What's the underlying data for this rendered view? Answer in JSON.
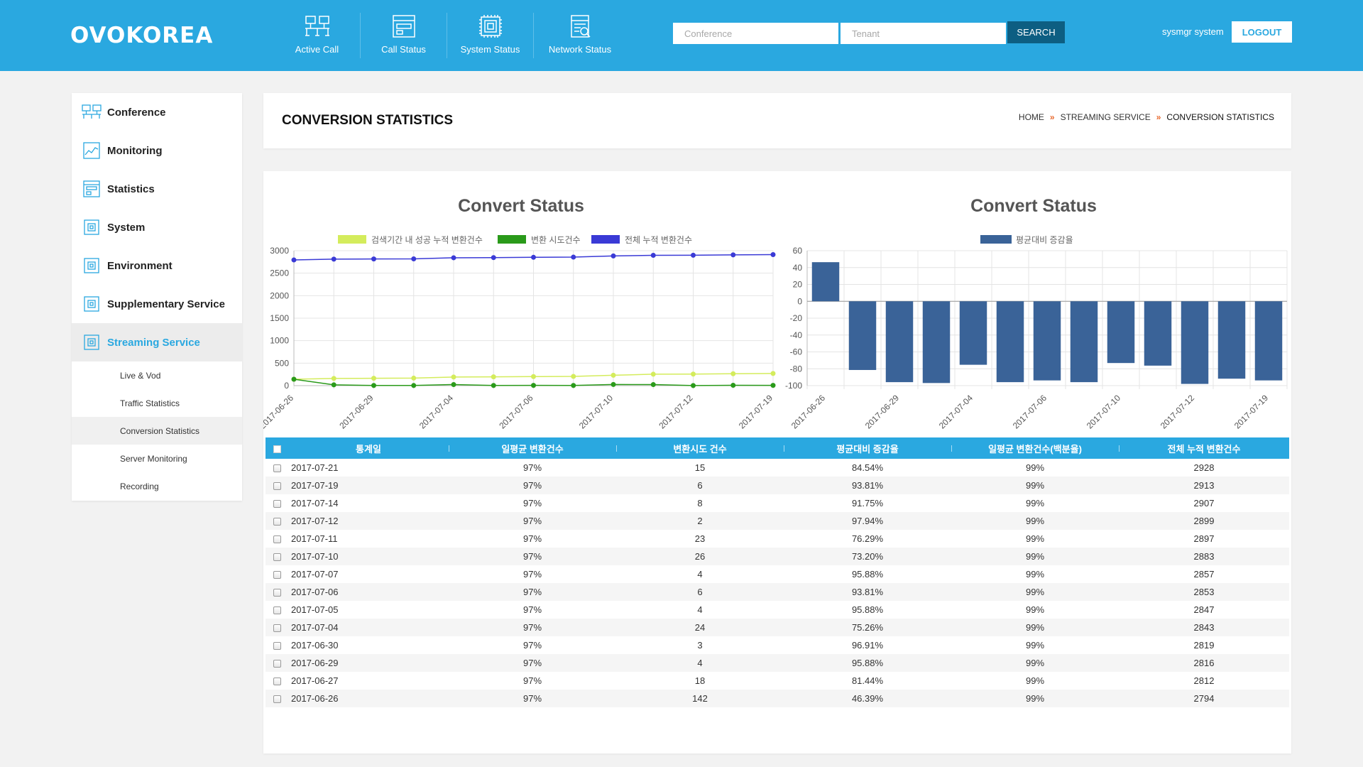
{
  "header": {
    "logo": "OVOKOREA",
    "nav": [
      {
        "label": "Active Call",
        "icon": "network-icon"
      },
      {
        "label": "Call Status",
        "icon": "window-icon"
      },
      {
        "label": "System Status",
        "icon": "chip-icon"
      },
      {
        "label": "Network Status",
        "icon": "document-search-icon"
      }
    ],
    "conference_placeholder": "Conference",
    "tenant_placeholder": "Tenant",
    "search_label": "SEARCH",
    "user": "sysmgr system",
    "logout_label": "LOGOUT",
    "accent": "#2aa8e0"
  },
  "sidebar": {
    "items": [
      {
        "label": "Conference",
        "icon": "network-icon"
      },
      {
        "label": "Monitoring",
        "icon": "monitoring-chart-icon"
      },
      {
        "label": "Statistics",
        "icon": "statistics-icon"
      },
      {
        "label": "System",
        "icon": "chip-icon"
      },
      {
        "label": "Environment",
        "icon": "chip-icon"
      },
      {
        "label": "Supplementary Service",
        "icon": "chip-icon"
      },
      {
        "label": "Streaming Service",
        "icon": "chip-icon",
        "active": true
      }
    ],
    "sub_items": [
      {
        "label": "Live & Vod"
      },
      {
        "label": "Traffic Statistics"
      },
      {
        "label": "Conversion Statistics",
        "active": true
      },
      {
        "label": "Server Monitoring"
      },
      {
        "label": "Recording"
      }
    ]
  },
  "page": {
    "title": "CONVERSION STATISTICS",
    "breadcrumb": [
      "HOME",
      "STREAMING SERVICE",
      "CONVERSION STATISTICS"
    ]
  },
  "chart_data": [
    {
      "type": "line",
      "title": "Convert Status",
      "x": [
        "2017-06-26",
        "2017-06-27",
        "2017-06-29",
        "2017-06-30",
        "2017-07-04",
        "2017-07-05",
        "2017-07-06",
        "2017-07-07",
        "2017-07-10",
        "2017-07-11",
        "2017-07-12",
        "2017-07-14",
        "2017-07-19"
      ],
      "x_tick_labels": [
        "2017-06-26",
        "2017-06-29",
        "2017-07-04",
        "2017-07-06",
        "2017-07-10",
        "2017-07-12",
        "2017-07-19"
      ],
      "series": [
        {
          "name": "검색기간 내 성공 누적 변환건수",
          "color": "#d4ec5c",
          "values": [
            142,
            160,
            164,
            167,
            191,
            195,
            201,
            205,
            231,
            254,
            256,
            264,
            270
          ]
        },
        {
          "name": "변환 시도건수",
          "color": "#2a9a1a",
          "values": [
            142,
            18,
            4,
            3,
            24,
            4,
            6,
            4,
            26,
            23,
            2,
            8,
            6
          ]
        },
        {
          "name": "전체 누적 변환건수",
          "color": "#3a3ad6",
          "values": [
            2794,
            2812,
            2816,
            2819,
            2843,
            2847,
            2853,
            2857,
            2883,
            2897,
            2899,
            2907,
            2913
          ]
        }
      ],
      "ylim": [
        0,
        3000
      ],
      "yticks": [
        0,
        500,
        1000,
        1500,
        2000,
        2500,
        3000
      ],
      "grid": true,
      "legend": "top"
    },
    {
      "type": "bar",
      "title": "Convert Status",
      "categories": [
        "2017-06-26",
        "2017-06-27",
        "2017-06-29",
        "2017-06-30",
        "2017-07-04",
        "2017-07-05",
        "2017-07-06",
        "2017-07-07",
        "2017-07-10",
        "2017-07-11",
        "2017-07-12",
        "2017-07-14",
        "2017-07-19"
      ],
      "x_tick_labels": [
        "2017-06-26",
        "2017-06-29",
        "2017-07-04",
        "2017-07-06",
        "2017-07-10",
        "2017-07-12",
        "2017-07-19"
      ],
      "series": [
        {
          "name": "평균대비 증감율",
          "color": "#3a6398",
          "values": [
            46.39,
            -81.44,
            -95.88,
            -96.91,
            -75.26,
            -95.88,
            -93.81,
            -95.88,
            -73.2,
            -76.29,
            -97.94,
            -91.75,
            -93.81
          ]
        }
      ],
      "ylim": [
        -100,
        60
      ],
      "yticks": [
        -100,
        -80,
        -60,
        -40,
        -20,
        0,
        20,
        40,
        60
      ],
      "grid": true,
      "legend": "top"
    }
  ],
  "table": {
    "headers": [
      "통계일",
      "일평균 변환건수",
      "변환시도 건수",
      "평균대비 증감율",
      "일평균 변환건수(백분율)",
      "전체 누적 변환건수"
    ],
    "rows": [
      [
        "2017-07-21",
        "97%",
        "15",
        "84.54%",
        "99%",
        "2928"
      ],
      [
        "2017-07-19",
        "97%",
        "6",
        "93.81%",
        "99%",
        "2913"
      ],
      [
        "2017-07-14",
        "97%",
        "8",
        "91.75%",
        "99%",
        "2907"
      ],
      [
        "2017-07-12",
        "97%",
        "2",
        "97.94%",
        "99%",
        "2899"
      ],
      [
        "2017-07-11",
        "97%",
        "23",
        "76.29%",
        "99%",
        "2897"
      ],
      [
        "2017-07-10",
        "97%",
        "26",
        "73.20%",
        "99%",
        "2883"
      ],
      [
        "2017-07-07",
        "97%",
        "4",
        "95.88%",
        "99%",
        "2857"
      ],
      [
        "2017-07-06",
        "97%",
        "6",
        "93.81%",
        "99%",
        "2853"
      ],
      [
        "2017-07-05",
        "97%",
        "4",
        "95.88%",
        "99%",
        "2847"
      ],
      [
        "2017-07-04",
        "97%",
        "24",
        "75.26%",
        "99%",
        "2843"
      ],
      [
        "2017-06-30",
        "97%",
        "3",
        "96.91%",
        "99%",
        "2819"
      ],
      [
        "2017-06-29",
        "97%",
        "4",
        "95.88%",
        "99%",
        "2816"
      ],
      [
        "2017-06-27",
        "97%",
        "18",
        "81.44%",
        "99%",
        "2812"
      ],
      [
        "2017-06-26",
        "97%",
        "142",
        "46.39%",
        "99%",
        "2794"
      ]
    ]
  }
}
